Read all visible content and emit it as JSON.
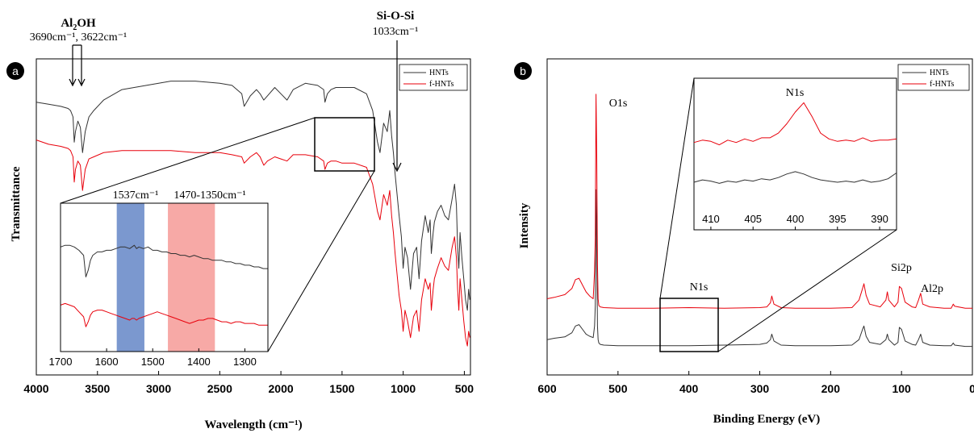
{
  "chart_data": [
    {
      "panel": "a",
      "type": "line",
      "xlabel": "Wavelength (cm⁻¹)",
      "ylabel": "Transmittance",
      "xlim": [
        4000,
        450
      ],
      "xticks": [
        4000,
        3500,
        3000,
        2500,
        2000,
        1500,
        1000,
        500
      ],
      "legend": {
        "placement": "top-right",
        "entries": [
          "HNTs",
          "f-HNTs"
        ]
      },
      "colors": {
        "HNTs": "#333333",
        "f-HNTs": "#e8000b"
      },
      "series": [
        {
          "name": "HNTs",
          "x": [
            4000,
            3900,
            3800,
            3740,
            3720,
            3700,
            3690,
            3680,
            3660,
            3640,
            3622,
            3600,
            3570,
            3530,
            3450,
            3300,
            3100,
            2900,
            2700,
            2500,
            2400,
            2320,
            2300,
            2250,
            2200,
            2170,
            2140,
            2110,
            2050,
            2000,
            1950,
            1900,
            1800,
            1700,
            1650,
            1640,
            1620,
            1590,
            1550,
            1500,
            1400,
            1300,
            1250,
            1210,
            1190,
            1160,
            1130,
            1110,
            1095,
            1080,
            1066,
            1050,
            1033,
            1015,
            1000,
            985,
            965,
            940,
            915,
            890,
            870,
            850,
            820,
            795,
            780,
            770,
            755,
            745,
            720,
            690,
            660,
            630,
            600,
            580,
            565,
            555,
            545,
            535,
            520,
            505,
            490,
            475,
            465,
            455
          ],
          "y": [
            54,
            53,
            52,
            51,
            50,
            47,
            35,
            40,
            45,
            42,
            30,
            40,
            47,
            50,
            55,
            60,
            62,
            64,
            64,
            63,
            62,
            58,
            52,
            57,
            60,
            58,
            55,
            57,
            61,
            58,
            55,
            60,
            63,
            62,
            60,
            54,
            58,
            60,
            61,
            61,
            61,
            58,
            50,
            35,
            30,
            44,
            40,
            50,
            38,
            30,
            20,
            10,
            0,
            -10,
            -25,
            -15,
            -20,
            -35,
            -18,
            -15,
            -30,
            -12,
            0,
            -8,
            -2,
            -18,
            -8,
            -3,
            2,
            5,
            0,
            -2,
            8,
            15,
            5,
            -15,
            -25,
            -8,
            -20,
            -30,
            -40,
            -45,
            -35,
            -40
          ]
        },
        {
          "name": "f-HNTs",
          "x": [
            4000,
            3900,
            3800,
            3740,
            3720,
            3700,
            3690,
            3680,
            3660,
            3640,
            3622,
            3600,
            3570,
            3530,
            3450,
            3300,
            3100,
            2900,
            2700,
            2500,
            2400,
            2320,
            2300,
            2250,
            2200,
            2170,
            2140,
            2110,
            2050,
            2000,
            1950,
            1900,
            1800,
            1700,
            1650,
            1640,
            1620,
            1590,
            1550,
            1500,
            1400,
            1300,
            1250,
            1210,
            1190,
            1160,
            1130,
            1110,
            1095,
            1080,
            1066,
            1050,
            1033,
            1015,
            1000,
            985,
            965,
            940,
            915,
            890,
            870,
            850,
            820,
            795,
            780,
            770,
            755,
            745,
            720,
            690,
            660,
            630,
            600,
            580,
            565,
            555,
            545,
            535,
            520,
            505,
            490,
            475,
            465,
            455
          ],
          "y": [
            36,
            34,
            33,
            32,
            31,
            28,
            16,
            22,
            26,
            24,
            12,
            22,
            27,
            28,
            30,
            31,
            31,
            31,
            30,
            30,
            29,
            28,
            25,
            28,
            30,
            28,
            24,
            26,
            28,
            27,
            26,
            29,
            29,
            28,
            26,
            22,
            25,
            26,
            26,
            25,
            25,
            23,
            15,
            2,
            -2,
            10,
            5,
            12,
            0,
            -8,
            -18,
            -28,
            -38,
            -45,
            -55,
            -45,
            -50,
            -58,
            -48,
            -45,
            -55,
            -40,
            -30,
            -35,
            -32,
            -45,
            -35,
            -30,
            -25,
            -20,
            -24,
            -26,
            -15,
            -10,
            -20,
            -35,
            -45,
            -30,
            -40,
            -50,
            -58,
            -62,
            -55,
            -58
          ]
        }
      ],
      "annotations": [
        {
          "label": "Al₂OH",
          "sub": "3690cm⁻¹, 3622cm⁻¹",
          "x": [
            3690,
            3622
          ]
        },
        {
          "label": "Si-O-Si",
          "sub": "1033cm⁻¹",
          "x": [
            1033
          ]
        }
      ],
      "inset": {
        "xlim": [
          1700,
          1250
        ],
        "xticks": [
          1700,
          1600,
          1500,
          1400,
          1300
        ],
        "bands": [
          {
            "label": "1537cm⁻¹",
            "from": 1578,
            "to": 1518,
            "color": "#7b98cf"
          },
          {
            "label": "1470-1350cm⁻¹",
            "from": 1467,
            "to": 1365,
            "color": "#f7a9a6"
          }
        ],
        "series": [
          {
            "name": "HNTs",
            "x": [
              1700,
              1690,
              1680,
              1670,
              1660,
              1650,
              1645,
              1640,
              1635,
              1630,
              1620,
              1610,
              1600,
              1590,
              1580,
              1570,
              1560,
              1550,
              1545,
              1540,
              1535,
              1530,
              1520,
              1510,
              1500,
              1490,
              1480,
              1470,
              1460,
              1450,
              1440,
              1430,
              1420,
              1410,
              1400,
              1390,
              1380,
              1370,
              1360,
              1350,
              1340,
              1330,
              1320,
              1310,
              1300,
              1290,
              1280,
              1270,
              1260,
              1250
            ],
            "y": [
              60,
              61,
              61,
              60,
              58,
              55,
              42,
              46,
              52,
              55,
              57,
              57,
              58,
              58,
              59,
              60,
              60,
              59,
              60,
              61,
              59,
              60,
              59,
              60,
              58,
              58,
              57,
              57,
              56,
              56,
              55,
              55,
              54,
              55,
              54,
              53,
              53,
              52,
              52,
              52,
              51,
              51,
              50,
              50,
              49,
              49,
              48,
              48,
              47,
              47
            ]
          },
          {
            "name": "f-HNTs",
            "x": [
              1700,
              1690,
              1680,
              1670,
              1660,
              1650,
              1645,
              1640,
              1635,
              1630,
              1620,
              1610,
              1600,
              1590,
              1580,
              1570,
              1560,
              1550,
              1545,
              1540,
              1535,
              1530,
              1520,
              1510,
              1500,
              1490,
              1480,
              1470,
              1460,
              1450,
              1440,
              1430,
              1420,
              1410,
              1400,
              1390,
              1380,
              1370,
              1360,
              1350,
              1340,
              1330,
              1320,
              1310,
              1300,
              1290,
              1280,
              1270,
              1260,
              1250
            ],
            "y": [
              25,
              26,
              25,
              24,
              21,
              18,
              12,
              15,
              19,
              21,
              22,
              22,
              21,
              20,
              19,
              18,
              17,
              16,
              17,
              17,
              16,
              17,
              18,
              19,
              20,
              21,
              20,
              19,
              18,
              17,
              16,
              15,
              14,
              15,
              16,
              16,
              17,
              17,
              16,
              15,
              15,
              14,
              15,
              15,
              14,
              14,
              14,
              13,
              13,
              13
            ]
          }
        ]
      }
    },
    {
      "panel": "b",
      "type": "line",
      "xlabel": "Binding Energy (eV)",
      "ylabel": "Intensity",
      "xlim": [
        600,
        0
      ],
      "xticks": [
        600,
        500,
        400,
        300,
        200,
        100,
        0
      ],
      "legend": {
        "placement": "top-right",
        "entries": [
          "HNTs",
          "f-HNTs"
        ]
      },
      "colors": {
        "HNTs": "#333333",
        "f-HNTs": "#e8000b"
      },
      "series": [
        {
          "name": "HNTs",
          "x": [
            600,
            590,
            575,
            565,
            560,
            555,
            550,
            545,
            540,
            535,
            533,
            532,
            531,
            530,
            529,
            528,
            527,
            525,
            520,
            500,
            450,
            400,
            350,
            300,
            290,
            285,
            283,
            280,
            270,
            250,
            200,
            170,
            160,
            155,
            153,
            150,
            145,
            130,
            122,
            120,
            118,
            110,
            105,
            103,
            100,
            95,
            85,
            80,
            76,
            73,
            70,
            60,
            40,
            30,
            27,
            25,
            10,
            0
          ],
          "y": [
            40,
            42,
            44,
            50,
            60,
            62,
            55,
            48,
            45,
            43,
            60,
            90,
            260,
            170,
            60,
            40,
            35,
            33,
            32,
            31,
            31,
            31,
            32,
            33,
            35,
            40,
            48,
            38,
            32,
            31,
            31,
            32,
            40,
            55,
            60,
            45,
            36,
            33,
            40,
            48,
            40,
            32,
            36,
            58,
            55,
            38,
            33,
            32,
            40,
            48,
            36,
            32,
            31,
            31,
            35,
            32,
            30,
            30
          ]
        },
        {
          "name": "f-HNTs",
          "x": [
            600,
            590,
            575,
            565,
            560,
            555,
            550,
            545,
            540,
            535,
            533,
            532,
            531,
            530,
            529,
            528,
            527,
            525,
            520,
            500,
            450,
            400,
            350,
            300,
            290,
            285,
            283,
            280,
            270,
            250,
            200,
            170,
            160,
            155,
            153,
            150,
            145,
            130,
            122,
            120,
            118,
            110,
            105,
            103,
            100,
            95,
            85,
            80,
            76,
            73,
            70,
            60,
            40,
            30,
            27,
            25,
            10,
            0
          ],
          "y": [
            100,
            102,
            106,
            115,
            128,
            130,
            120,
            110,
            104,
            100,
            140,
            190,
            400,
            310,
            150,
            100,
            90,
            88,
            87,
            86,
            86,
            87,
            86,
            87,
            88,
            94,
            104,
            92,
            87,
            86,
            86,
            87,
            98,
            115,
            122,
            105,
            92,
            88,
            98,
            110,
            98,
            88,
            95,
            118,
            115,
            95,
            88,
            87,
            98,
            108,
            92,
            88,
            86,
            86,
            92,
            89,
            86,
            86
          ]
        }
      ],
      "annotations": [
        {
          "label": "O1s",
          "x": 530
        },
        {
          "label": "N1s",
          "x": 400
        },
        {
          "label": "Si2p",
          "x": 103
        },
        {
          "label": "Al2p",
          "x": 74
        }
      ],
      "inset": {
        "xlim": [
          412,
          388
        ],
        "xticks": [
          410,
          405,
          400,
          395,
          390
        ],
        "label": "N1s",
        "series": [
          {
            "name": "HNTs",
            "x": [
              412,
              411,
              410,
              409,
              408,
              407,
              406,
              405,
              404,
              403,
              402,
              401,
              400,
              399,
              398,
              397,
              396,
              395,
              394,
              393,
              392,
              391,
              390,
              389,
              388
            ],
            "y": [
              20,
              22,
              21,
              19,
              21,
              20,
              22,
              21,
              23,
              22,
              24,
              27,
              29,
              27,
              24,
              22,
              21,
              20,
              21,
              20,
              22,
              20,
              21,
              23,
              28
            ]
          },
          {
            "name": "f-HNTs",
            "x": [
              412,
              411,
              410,
              409,
              408,
              407,
              406,
              405,
              404,
              403,
              402,
              401,
              400,
              399,
              398,
              397,
              396,
              395,
              394,
              393,
              392,
              391,
              390,
              389,
              388
            ],
            "y": [
              54,
              56,
              55,
              52,
              56,
              54,
              57,
              55,
              58,
              58,
              62,
              70,
              80,
              88,
              76,
              62,
              57,
              55,
              56,
              55,
              58,
              55,
              56,
              56,
              57
            ]
          }
        ]
      }
    }
  ],
  "labels": {
    "panel_a": "a",
    "panel_b": "b",
    "a_al2oh_main": "Al",
    "a_al2oh_sub": "2",
    "a_al2oh_tail": "OH",
    "a_al2oh_sub_text": "3690cm⁻¹, 3622cm⁻¹",
    "a_sio_main": "Si-O-Si",
    "a_sio_sub": "1033cm⁻¹",
    "a_ylabel": "Transmittance",
    "a_xlabel": "Wavelength (cm⁻¹)",
    "a_band1": "1537cm⁻¹",
    "a_band2": "1470-1350cm⁻¹",
    "b_ylabel": "Intensity",
    "b_xlabel": "Binding Energy (eV)",
    "b_o1s": "O1s",
    "b_n1s": "N1s",
    "b_n1s_inset": "N1s",
    "b_si2p": "Si2p",
    "b_al2p": "Al2p",
    "legend_hnts": "HNTs",
    "legend_fhnts": "f-HNTs"
  }
}
